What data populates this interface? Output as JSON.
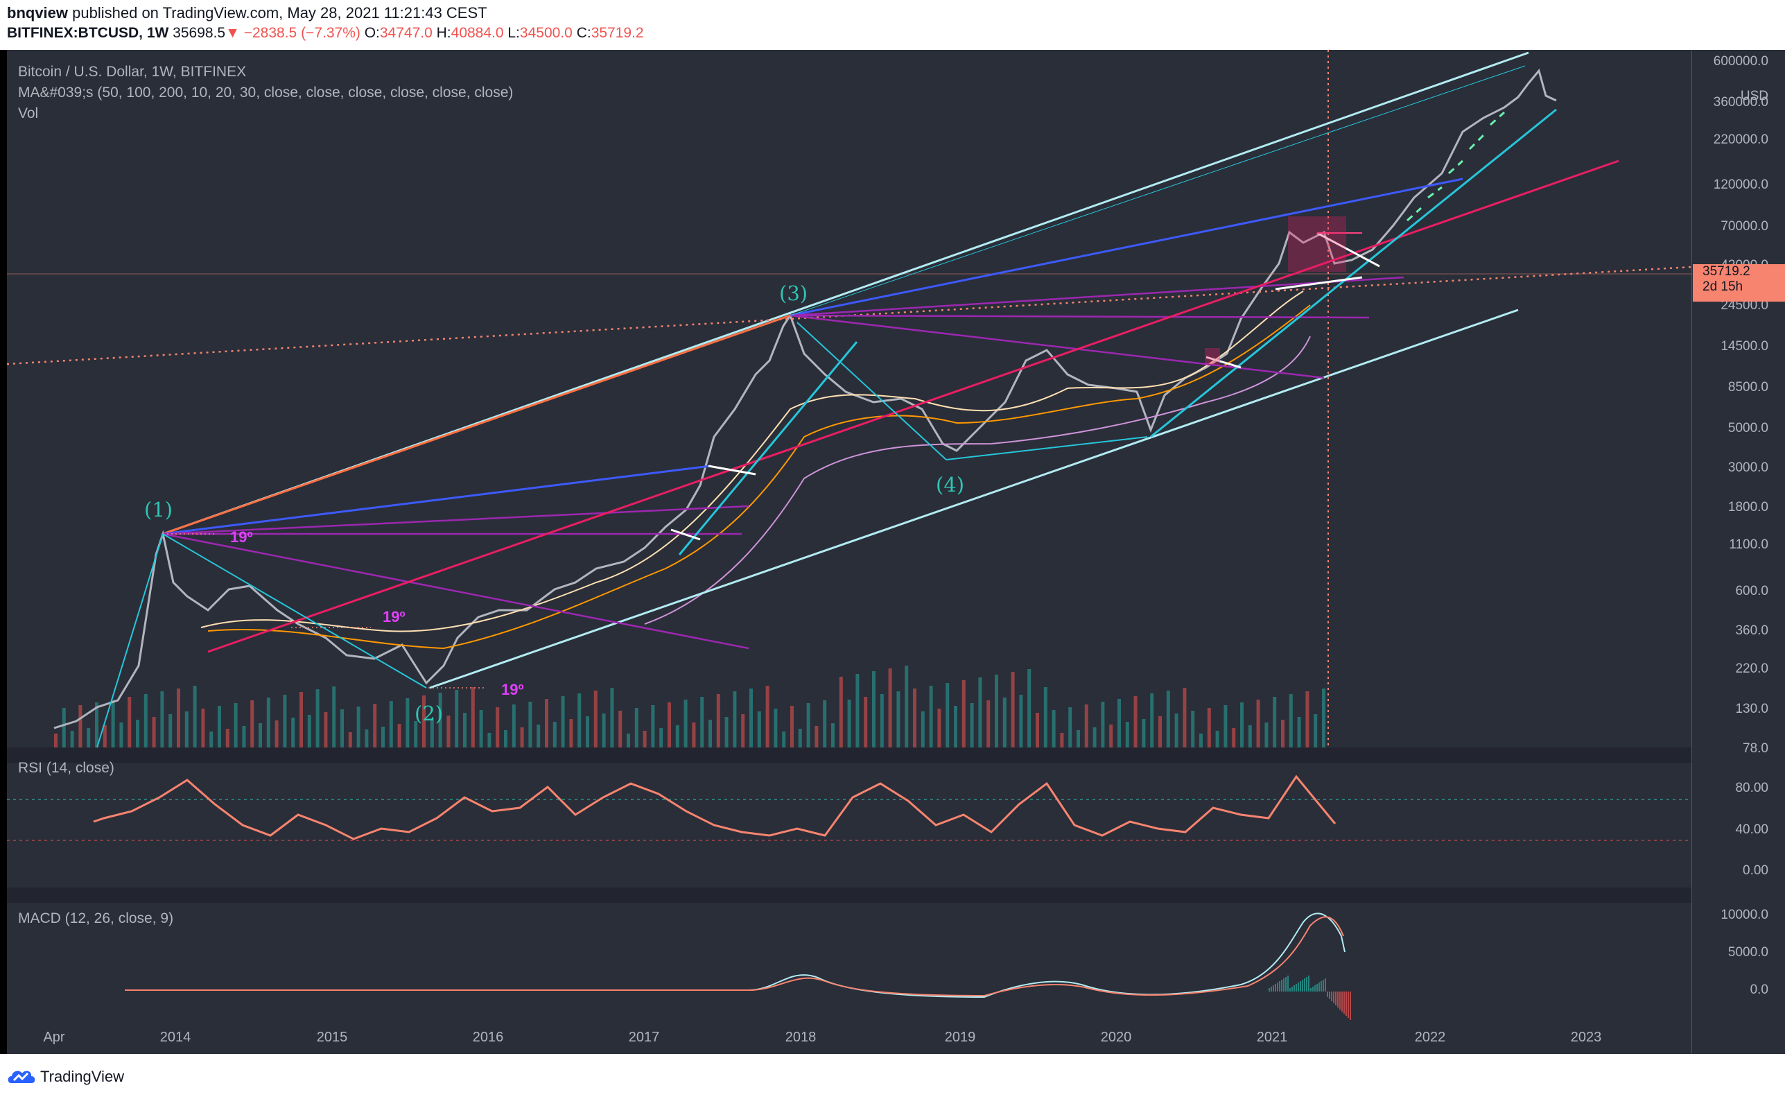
{
  "header": {
    "author": "bnqview",
    "published_text": "published on TradingView.com, May 28, 2021 11:21:43 CEST",
    "symbol": "BITFINEX:BTCUSD, 1W",
    "last": "35698.5",
    "change_arrow": "▼",
    "change": "−2838.5 (−7.37%)",
    "open_label": "O:",
    "open": "34747.0",
    "high_label": "H:",
    "high": "40884.0",
    "low_label": "L:",
    "low": "34500.0",
    "close_label": "C:",
    "close": "35719.2"
  },
  "legend": {
    "title": "Bitcoin / U.S. Dollar, 1W, BITFINEX",
    "ma": "MA&#039;s (50, 100, 200, 10, 20, 30, close, close, close, close, close, close)",
    "vol": "Vol",
    "rsi": "RSI (14, close)",
    "macd": "MACD (12, 26, close, 9)"
  },
  "price_axis": {
    "currency": "USD",
    "ticks": [
      "600000.0",
      "360000.0",
      "220000.0",
      "120000.0",
      "70000.0",
      "42000.0",
      "24500.0",
      "14500.0",
      "8500.0",
      "5000.0",
      "3000.0",
      "1800.0",
      "1100.0",
      "600.0",
      "360.0",
      "220.0",
      "130.0",
      "78.0"
    ],
    "badge_price": "35719.2",
    "badge_countdown": "2d 15h"
  },
  "rsi_axis": {
    "ticks": [
      "80.00",
      "40.00",
      "0.00"
    ]
  },
  "macd_axis": {
    "ticks": [
      "10000.0",
      "5000.0",
      "0.0"
    ]
  },
  "time_axis": {
    "ticks": [
      "Apr",
      "2014",
      "2015",
      "2016",
      "2017",
      "2018",
      "2019",
      "2020",
      "2021",
      "2022",
      "2023"
    ]
  },
  "annotations": {
    "waves": [
      "(1)",
      "(2)",
      "(3)",
      "(4)"
    ],
    "angles": [
      "19º",
      "19º",
      "19º"
    ]
  },
  "colors": {
    "background": "#2a2e39",
    "channel": "#b2ebf2",
    "teal": "#26c6da",
    "blue": "#3d5afe",
    "purple": "#9c27b0",
    "pink": "#e91e63",
    "orange_dotted": "#f7846f",
    "rsi_line": "#f7846f",
    "macd_line": "#b2ebf2",
    "signal_line": "#f7846f",
    "volume_up": "#26a69a",
    "volume_down": "#ef5350"
  },
  "footer": {
    "brand": "TradingView",
    "logo": "tradingview-cloud-icon"
  }
}
